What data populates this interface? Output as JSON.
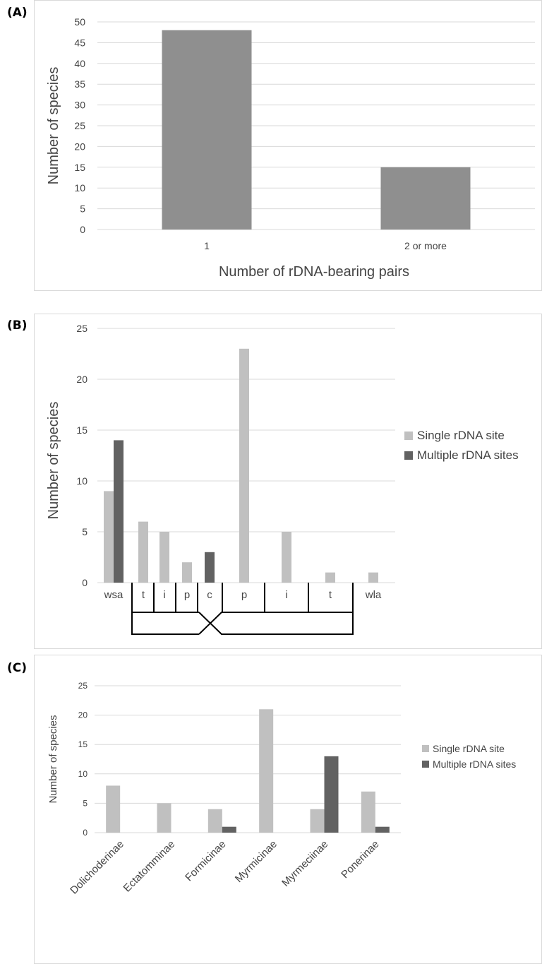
{
  "panels": [
    {
      "label": "(A)"
    },
    {
      "label": "(B)"
    },
    {
      "label": "(C)"
    }
  ],
  "chart_data": [
    {
      "type": "bar",
      "categories": [
        "1",
        "2 or more"
      ],
      "values": [
        48,
        15
      ],
      "ylabel": "Number of species",
      "xlabel": "Number of rDNA-bearing pairs",
      "ylim": [
        0,
        50
      ],
      "yticks": [
        0,
        5,
        10,
        15,
        20,
        25,
        30,
        35,
        40,
        45,
        50
      ],
      "grid": true,
      "colors": {
        "bar": "#8f8f8f",
        "grid": "#d9d9d9"
      }
    },
    {
      "type": "bar",
      "categories": [
        "wsa",
        "t",
        "i",
        "p",
        "c",
        "p",
        "i",
        "t",
        "wla"
      ],
      "series": [
        {
          "name": "Single rDNA site",
          "values": [
            9,
            6,
            5,
            2,
            0,
            23,
            5,
            1,
            1
          ],
          "color": "#c0c0c0"
        },
        {
          "name": "Multiple rDNA sites",
          "values": [
            14,
            0,
            0,
            0,
            3,
            0,
            0,
            0,
            0
          ],
          "color": "#626262"
        }
      ],
      "ylabel": "Number of species",
      "ylim": [
        0,
        25
      ],
      "yticks": [
        0,
        5,
        10,
        15,
        20,
        25
      ],
      "grid": true,
      "legend": "right"
    },
    {
      "type": "bar",
      "categories": [
        "Dolichoderinae",
        "Ectatomminae",
        "Formicinae",
        "Myrmicinae",
        "Myrmeciinae",
        "Ponerinae"
      ],
      "series": [
        {
          "name": "Single rDNA site",
          "values": [
            8,
            5,
            4,
            21,
            4,
            7
          ],
          "color": "#c0c0c0"
        },
        {
          "name": "Multiple rDNA sites",
          "values": [
            0,
            0,
            1,
            0,
            13,
            1
          ],
          "color": "#626262"
        }
      ],
      "ylabel": "Number of species",
      "ylim": [
        0,
        25
      ],
      "yticks": [
        0,
        5,
        10,
        15,
        20,
        25
      ],
      "grid": true,
      "legend": "right"
    }
  ]
}
